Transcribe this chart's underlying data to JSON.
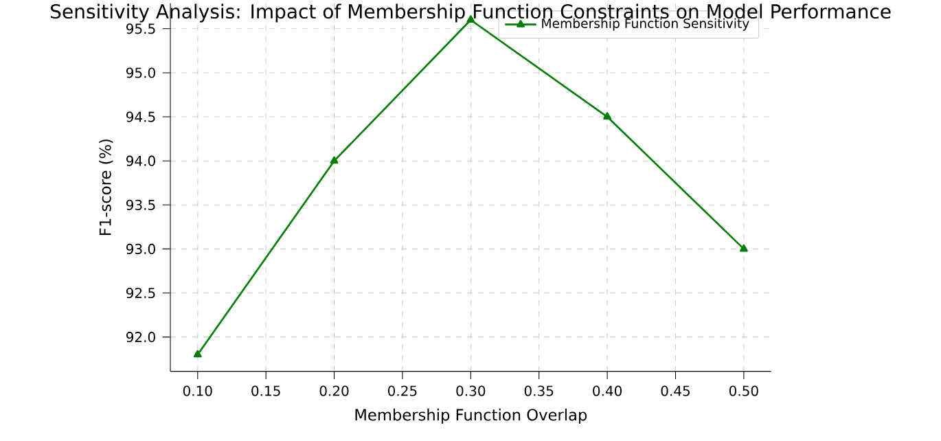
{
  "chart_data": {
    "type": "line",
    "title": "Sensitivity Analysis: Impact of Membership Function Constraints on Model Performance",
    "xlabel": "Membership Function Overlap",
    "ylabel": "F1-score (%)",
    "x": [
      0.1,
      0.2,
      0.3,
      0.4,
      0.5
    ],
    "series": [
      {
        "name": "Membership Function Sensitivity",
        "color": "#008000",
        "values": [
          91.8,
          94.0,
          95.6,
          94.5,
          93.0
        ]
      }
    ],
    "xlim": [
      0.08,
      0.52
    ],
    "ylim": [
      91.61,
      95.79
    ],
    "xticks": [
      {
        "value": 0.1,
        "label": "0.10"
      },
      {
        "value": 0.15,
        "label": "0.15"
      },
      {
        "value": 0.2,
        "label": "0.20"
      },
      {
        "value": 0.25,
        "label": "0.25"
      },
      {
        "value": 0.3,
        "label": "0.30"
      },
      {
        "value": 0.35,
        "label": "0.35"
      },
      {
        "value": 0.4,
        "label": "0.40"
      },
      {
        "value": 0.45,
        "label": "0.45"
      },
      {
        "value": 0.5,
        "label": "0.50"
      }
    ],
    "yticks": [
      {
        "value": 92.0,
        "label": "92.0"
      },
      {
        "value": 92.5,
        "label": "92.5"
      },
      {
        "value": 93.0,
        "label": "93.0"
      },
      {
        "value": 93.5,
        "label": "93.5"
      },
      {
        "value": 94.0,
        "label": "94.0"
      },
      {
        "value": 94.5,
        "label": "94.5"
      },
      {
        "value": 95.0,
        "label": "95.0"
      },
      {
        "value": 95.5,
        "label": "95.5"
      }
    ],
    "grid": true,
    "legend": "top right",
    "marker": "triangle",
    "line_style": "solid"
  }
}
